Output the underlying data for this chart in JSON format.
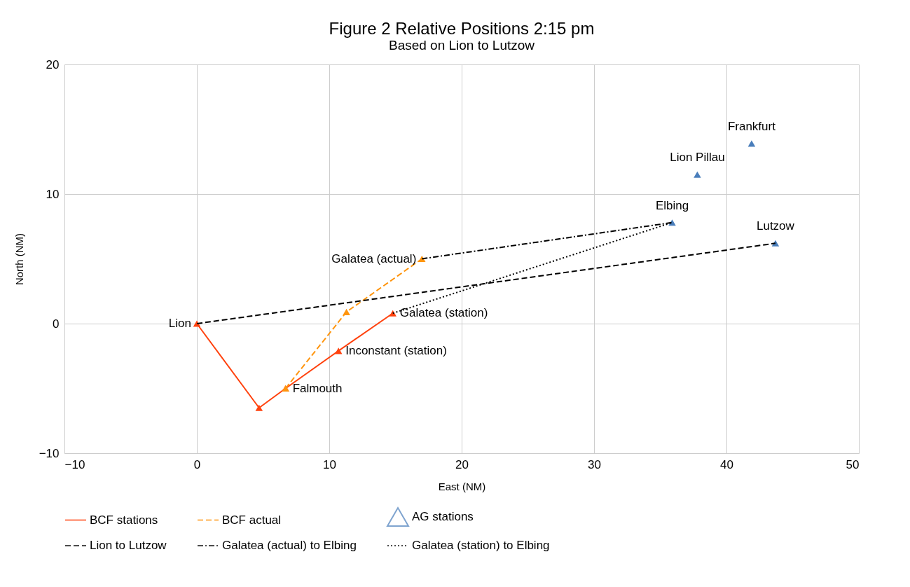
{
  "chart_data": {
    "type": "scatter",
    "title": "Figure 2 Relative Positions 2:15 pm",
    "subtitle": "Based on Lion to Lutzow",
    "xlabel": "East (NM)",
    "ylabel": "North (NM)",
    "xlim": [
      -10,
      50
    ],
    "xticks": [
      -10,
      0,
      10,
      20,
      30,
      40,
      50
    ],
    "ylim": [
      -10,
      20
    ],
    "yticks": [
      -10,
      0,
      10,
      20
    ],
    "grid": true,
    "legend": "bottom",
    "series": [
      {
        "name": "BCF stations",
        "type": "line",
        "color": "#ff420e",
        "line_style": "solid",
        "marker": "triangle",
        "x": [
          0,
          4.7,
          6.7,
          10.7,
          14.8
        ],
        "values": [
          0,
          -6.5,
          -5.0,
          -2.1,
          0.8
        ]
      },
      {
        "name": "BCF actual",
        "type": "line",
        "color": "#ff950e",
        "line_style": "dashed",
        "marker": "triangle",
        "x": [
          6.7,
          11.3,
          17.0
        ],
        "values": [
          -5.0,
          0.9,
          5.0
        ]
      },
      {
        "name": "AG stations",
        "color": "#4a7ebb",
        "marker": "triangle",
        "x": [
          41.9,
          37.8,
          35.9,
          43.7
        ],
        "values": [
          13.9,
          11.5,
          7.8,
          6.2
        ]
      },
      {
        "name": "Lion to Lutzow",
        "type": "line",
        "color": "#000000",
        "line_style": "dashed",
        "marker": "none",
        "x": [
          0,
          43.7
        ],
        "values": [
          0,
          6.2
        ]
      },
      {
        "name": "Galatea (actual) to Elbing",
        "type": "line",
        "color": "#000000",
        "line_style": "dashdot",
        "marker": "none",
        "x": [
          17.0,
          35.9
        ],
        "values": [
          5.0,
          7.8
        ]
      },
      {
        "name": "Galatea (station) to Elbing",
        "type": "line",
        "color": "#000000",
        "line_style": "dotted",
        "marker": "none",
        "x": [
          14.8,
          35.9
        ],
        "values": [
          0.8,
          7.8
        ]
      }
    ],
    "annotations": [
      {
        "text": "Lion",
        "x": 0,
        "y": 0
      },
      {
        "text": "Galatea (actual)",
        "x": 17.0,
        "y": 5.0
      },
      {
        "text": "Falmouth",
        "x": 6.7,
        "y": -5.0
      },
      {
        "text": "Inconstant (station)",
        "x": 10.7,
        "y": -2.1
      },
      {
        "text": "Galatea (station)",
        "x": 14.8,
        "y": 0.8
      },
      {
        "text": "Frankfurt",
        "x": 41.9,
        "y": 13.9
      },
      {
        "text": "Lion Pillau",
        "x": 37.8,
        "y": 11.5
      },
      {
        "text": "Elbing",
        "x": 35.9,
        "y": 7.8
      },
      {
        "text": "Lutzow",
        "x": 43.7,
        "y": 6.2
      }
    ]
  }
}
